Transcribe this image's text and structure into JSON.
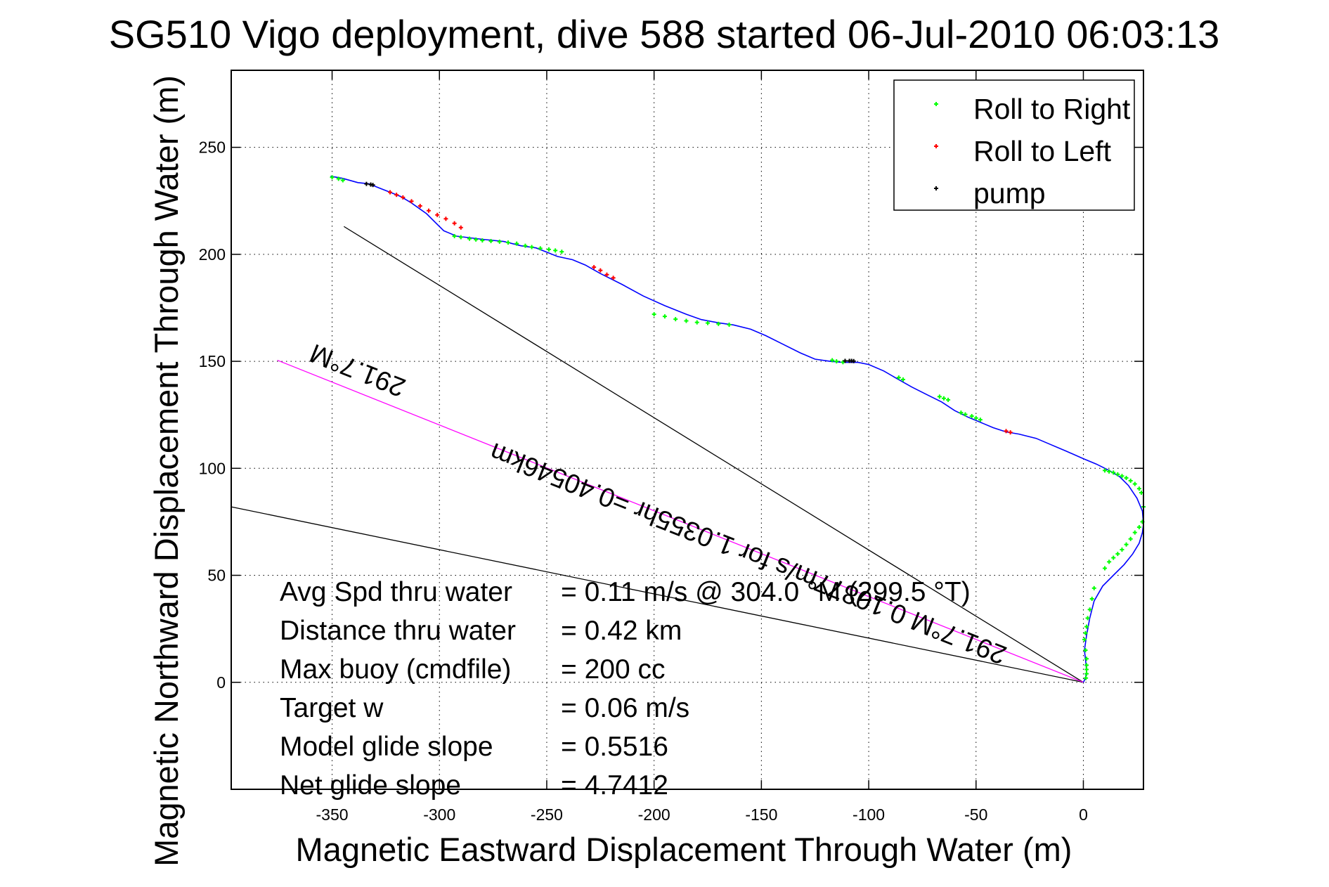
{
  "chart_data": {
    "type": "line",
    "title": "SG510 Vigo deployment, dive 588 started 06-Jul-2010 06:03:13",
    "xlabel": "Magnetic Eastward Displacement Through Water (m)",
    "ylabel": "Magnetic Northward Displacement Through Water (m)",
    "xlim": [
      -397,
      28
    ],
    "ylim": [
      -50,
      286
    ],
    "xticks": [
      -350,
      -300,
      -250,
      -200,
      -150,
      -100,
      -50,
      0
    ],
    "yticks": [
      0,
      50,
      100,
      150,
      200,
      250
    ],
    "xtick_labels": [
      "-350",
      "-300",
      "-250",
      "-200",
      "-150",
      "-100",
      "-50",
      "0"
    ],
    "ytick_labels": [
      "0",
      "50",
      "100",
      "150",
      "200",
      "250"
    ],
    "grid": true,
    "legend_position": "top-right",
    "legend": [
      {
        "label": "Roll to Right",
        "color": "#00ff00"
      },
      {
        "label": "Roll to Left",
        "color": "#ff0000"
      },
      {
        "label": "pump",
        "color": "#000000"
      }
    ],
    "track": {
      "name": "trajectory",
      "color": "#0000ff",
      "x": [
        -350.7,
        -345,
        -338,
        -333,
        -328,
        -323,
        -318,
        -313,
        -306,
        -302,
        -298,
        -292,
        -280,
        -270,
        -262,
        -255,
        -250,
        -245,
        -238,
        -232,
        -225,
        -215,
        -205,
        -195,
        -185,
        -178,
        -170,
        -163,
        -155,
        -148,
        -140,
        -132,
        -125,
        -118,
        -112,
        -105,
        -100,
        -93,
        -87,
        -80,
        -73,
        -66,
        -60,
        -54,
        -48,
        -42,
        -36,
        -30,
        -22,
        -15,
        -8,
        0,
        6,
        12,
        17,
        21,
        25,
        27.5,
        28,
        27.5,
        26,
        23,
        19,
        14,
        9,
        5,
        3,
        1.5,
        0.5,
        1.2,
        1.5,
        1,
        0
      ],
      "y": [
        236.5,
        235.5,
        233.5,
        233,
        231,
        229,
        227,
        224,
        219,
        215,
        211,
        208.5,
        207,
        206,
        204,
        203,
        201,
        199,
        197.5,
        195,
        191,
        186,
        180.5,
        176,
        172,
        169.5,
        168,
        167,
        165,
        162,
        158,
        154,
        151,
        150,
        149.5,
        149.5,
        148.5,
        145.5,
        142,
        138,
        134.5,
        131,
        127,
        124,
        121.5,
        119,
        117,
        116,
        114,
        111,
        108,
        104.5,
        102,
        99,
        96,
        92,
        86,
        80,
        74,
        70,
        65,
        60,
        55,
        50,
        45,
        38,
        30,
        22,
        15,
        9,
        5,
        2,
        0
      ]
    },
    "markers": {
      "roll_right": {
        "color": "#00ff00",
        "x": [
          -350,
          -347,
          -345,
          -293,
          -290,
          -286,
          -283,
          -280,
          -276,
          -272,
          -268,
          -264,
          -260,
          -257,
          -253,
          -249,
          -246,
          -243,
          -200,
          -195,
          -190,
          -185,
          -180,
          -175,
          -170,
          -165,
          -117,
          -115,
          -112,
          -86,
          -84,
          -67,
          -65,
          -63,
          -57,
          -55,
          -52,
          -50,
          -48,
          10,
          12,
          14,
          16,
          18,
          20,
          22,
          24,
          26,
          27,
          28,
          27.5,
          26,
          24,
          22,
          20,
          18,
          16,
          14,
          12,
          10,
          5,
          4,
          3,
          2,
          1.5,
          1,
          0.5,
          1,
          1.5,
          1.5,
          1.5,
          1.5,
          1.2
        ],
        "y": [
          236,
          235.3,
          234.6,
          208.5,
          208,
          207.3,
          206.9,
          206.5,
          206.2,
          205.9,
          205.5,
          205,
          204,
          203.4,
          202.8,
          202.3,
          201.8,
          201.2,
          172,
          171,
          169.7,
          168.9,
          168.2,
          167.9,
          167.5,
          167.1,
          150.5,
          150,
          149.6,
          142.4,
          141.5,
          133.5,
          132.7,
          132,
          126,
          125.2,
          124.4,
          123.5,
          122.7,
          99,
          98.5,
          98,
          97.2,
          96.4,
          95.5,
          94.2,
          92.7,
          90.5,
          88.6,
          82,
          75,
          72.5,
          70,
          67,
          64.4,
          62,
          60,
          58.2,
          56.3,
          53.3,
          44,
          39,
          34,
          30,
          26,
          23,
          20,
          15,
          11,
          8,
          6,
          4,
          2
        ]
      },
      "roll_left": {
        "color": "#ff0000",
        "x": [
          -323,
          -320,
          -317,
          -313,
          -309,
          -305,
          -301,
          -297,
          -293,
          -290,
          -228,
          -225,
          -222,
          -219,
          -36,
          -34
        ],
        "y": [
          229,
          227.8,
          226.6,
          224.8,
          222.6,
          220.4,
          218.4,
          216.6,
          214.5,
          212.5,
          194,
          192.5,
          190.5,
          189,
          117.4,
          116.8
        ]
      },
      "pump": {
        "color": "#000000",
        "x": [
          -334,
          -332,
          -331,
          -111,
          -109,
          -108,
          -107
        ],
        "y": [
          232.9,
          232.6,
          232.4,
          150.2,
          150.2,
          150.2,
          150.1
        ]
      }
    },
    "reference_lines": [
      {
        "name": "heading-line-upper",
        "color": "#000000",
        "x": [
          0,
          -344.5
        ],
        "y": [
          0,
          213
        ]
      },
      {
        "name": "heading-line-lower",
        "color": "#000000",
        "x": [
          0,
          -397
        ],
        "y": [
          0,
          82
        ]
      },
      {
        "name": "net-displacement-line",
        "color": "#ff00ff",
        "x": [
          0,
          -375.5
        ],
        "y": [
          0,
          150.5
        ]
      }
    ],
    "annotations": [
      {
        "name": "heading-annotation",
        "text": "291.7°M",
        "x": -315,
        "y": 141,
        "rotation_deg": 201.8
      },
      {
        "name": "net-velocity-annotation",
        "text": "291.7°M 0.10877m/s for 1.0355hr =0.40546km",
        "x": -35,
        "y": 16,
        "rotation_deg": 201.8
      }
    ],
    "stats": [
      {
        "label": "Avg Spd thru water",
        "value": "=  0.11 m/s @ 304.0 °M (299.5 °T)"
      },
      {
        "label": "Distance thru water",
        "value": "=  0.42 km"
      },
      {
        "label": "Max buoy (cmdfile)",
        "value": "= 200 cc"
      },
      {
        "label": "Target w",
        "value": "= 0.06 m/s"
      },
      {
        "label": "Model glide slope",
        "value": "= 0.5516"
      },
      {
        "label": "Net glide slope",
        "value": "= 4.7412"
      }
    ]
  }
}
